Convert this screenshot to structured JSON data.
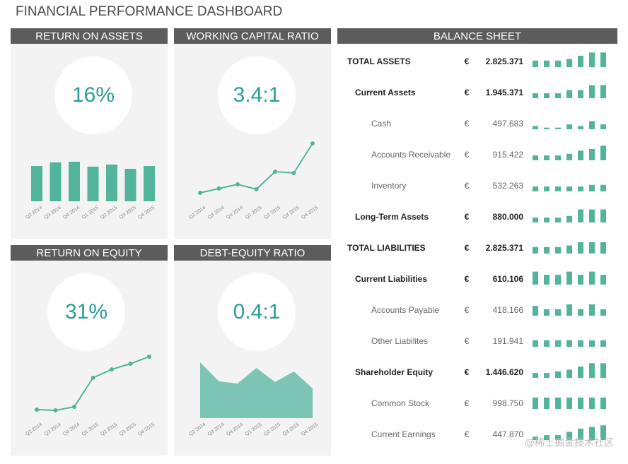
{
  "title": "FINANCIAL PERFORMANCE DASHBOARD",
  "watermark": "@稀土掘金技术社区",
  "chart_data": [
    {
      "type": "bar",
      "title": "RETURN ON ASSETS",
      "kpi": "16%",
      "categories": [
        "Q2 2014",
        "Q3 2014",
        "Q4 2014",
        "Q1 2015",
        "Q2 2015",
        "Q3 2015",
        "Q4 2015"
      ],
      "values": [
        50,
        55,
        56,
        49,
        52,
        46,
        50
      ],
      "ylim": [
        0,
        100
      ],
      "color": "#52b49b"
    },
    {
      "type": "line",
      "title": "WORKING CAPITAL RATIO",
      "kpi": "3.4:1",
      "categories": [
        "Q2 2014",
        "Q3 2014",
        "Q4 2014",
        "Q1 2015",
        "Q2 2015",
        "Q3 2015",
        "Q4 2015"
      ],
      "values": [
        12,
        18,
        24,
        17,
        42,
        40,
        82
      ],
      "ylim": [
        0,
        100
      ],
      "color": "#52b49b"
    },
    {
      "type": "line",
      "title": "RETURN ON EQUITY",
      "kpi": "31%",
      "categories": [
        "Q2 2014",
        "Q3 2014",
        "Q4 2014",
        "Q1 2015",
        "Q2 2015",
        "Q3 2015",
        "Q4 2015"
      ],
      "values": [
        12,
        11,
        16,
        57,
        69,
        77,
        87
      ],
      "ylim": [
        0,
        100
      ],
      "color": "#52b49b"
    },
    {
      "type": "area",
      "title": "DEBT-EQUITY RATIO",
      "kpi": "0.4:1",
      "categories": [
        "Q2 2014",
        "Q3 2014",
        "Q4 2014",
        "Q1 2015",
        "Q2 2015",
        "Q3 2015",
        "Q4 2015"
      ],
      "values": [
        79,
        52,
        49,
        71,
        51,
        66,
        42
      ],
      "ylim": [
        0,
        100
      ],
      "color": "#7cc5b4"
    }
  ],
  "balance_sheet": {
    "title": "BALANCE SHEET",
    "color": "#52b49b",
    "bar_max": 10,
    "rows": [
      {
        "label": "TOTAL ASSETS",
        "currency": "€",
        "amount": "2.825.371",
        "level": 0,
        "bars": [
          4,
          4,
          4,
          5,
          7,
          9,
          9
        ]
      },
      {
        "label": "Current Assets",
        "currency": "€",
        "amount": "1.945.371",
        "level": 1,
        "bars": [
          3,
          3,
          3,
          5,
          5,
          8,
          8
        ]
      },
      {
        "label": "Cash",
        "currency": "€",
        "amount": "497.683",
        "level": 2,
        "bars": [
          2,
          1,
          1,
          3,
          2,
          5,
          3
        ]
      },
      {
        "label": "Accounts Receivable",
        "currency": "€",
        "amount": "915.422",
        "level": 2,
        "bars": [
          3,
          3,
          3,
          4,
          6,
          7,
          9
        ]
      },
      {
        "label": "Inventory",
        "currency": "€",
        "amount": "532.263",
        "level": 2,
        "bars": [
          3,
          3,
          3,
          3,
          3,
          4,
          4
        ]
      },
      {
        "label": "Long-Term Assets",
        "currency": "€",
        "amount": "880.000",
        "level": 1,
        "bars": [
          3,
          3,
          3,
          4,
          8,
          8,
          8
        ]
      },
      {
        "label": "TOTAL LIABILITIES",
        "currency": "€",
        "amount": "2.825.371",
        "level": 0,
        "bars": [
          4,
          4,
          4,
          5,
          7,
          7,
          7
        ]
      },
      {
        "label": "Current Liabilities",
        "currency": "€",
        "amount": "610.106",
        "level": 1,
        "bars": [
          8,
          6,
          6,
          8,
          6,
          8,
          6
        ]
      },
      {
        "label": "Accounts Payable",
        "currency": "€",
        "amount": "418.166",
        "level": 2,
        "bars": [
          6,
          4,
          4,
          7,
          4,
          7,
          4
        ]
      },
      {
        "label": "Other Liabilites",
        "currency": "€",
        "amount": "191.941",
        "level": 2,
        "bars": [
          4,
          4,
          4,
          4,
          4,
          4,
          4
        ]
      },
      {
        "label": "Shareholder Equity",
        "currency": "€",
        "amount": "1.446.620",
        "level": 1,
        "bars": [
          3,
          3,
          4,
          5,
          7,
          9,
          9
        ]
      },
      {
        "label": "Common Stock",
        "currency": "€",
        "amount": "998.750",
        "level": 2,
        "bars": [
          7,
          7,
          7,
          7,
          7,
          7,
          7
        ]
      },
      {
        "label": "Current Earnings",
        "currency": "€",
        "amount": "447.870",
        "level": 2,
        "bars": [
          2,
          3,
          3,
          5,
          7,
          8,
          9
        ]
      }
    ]
  }
}
